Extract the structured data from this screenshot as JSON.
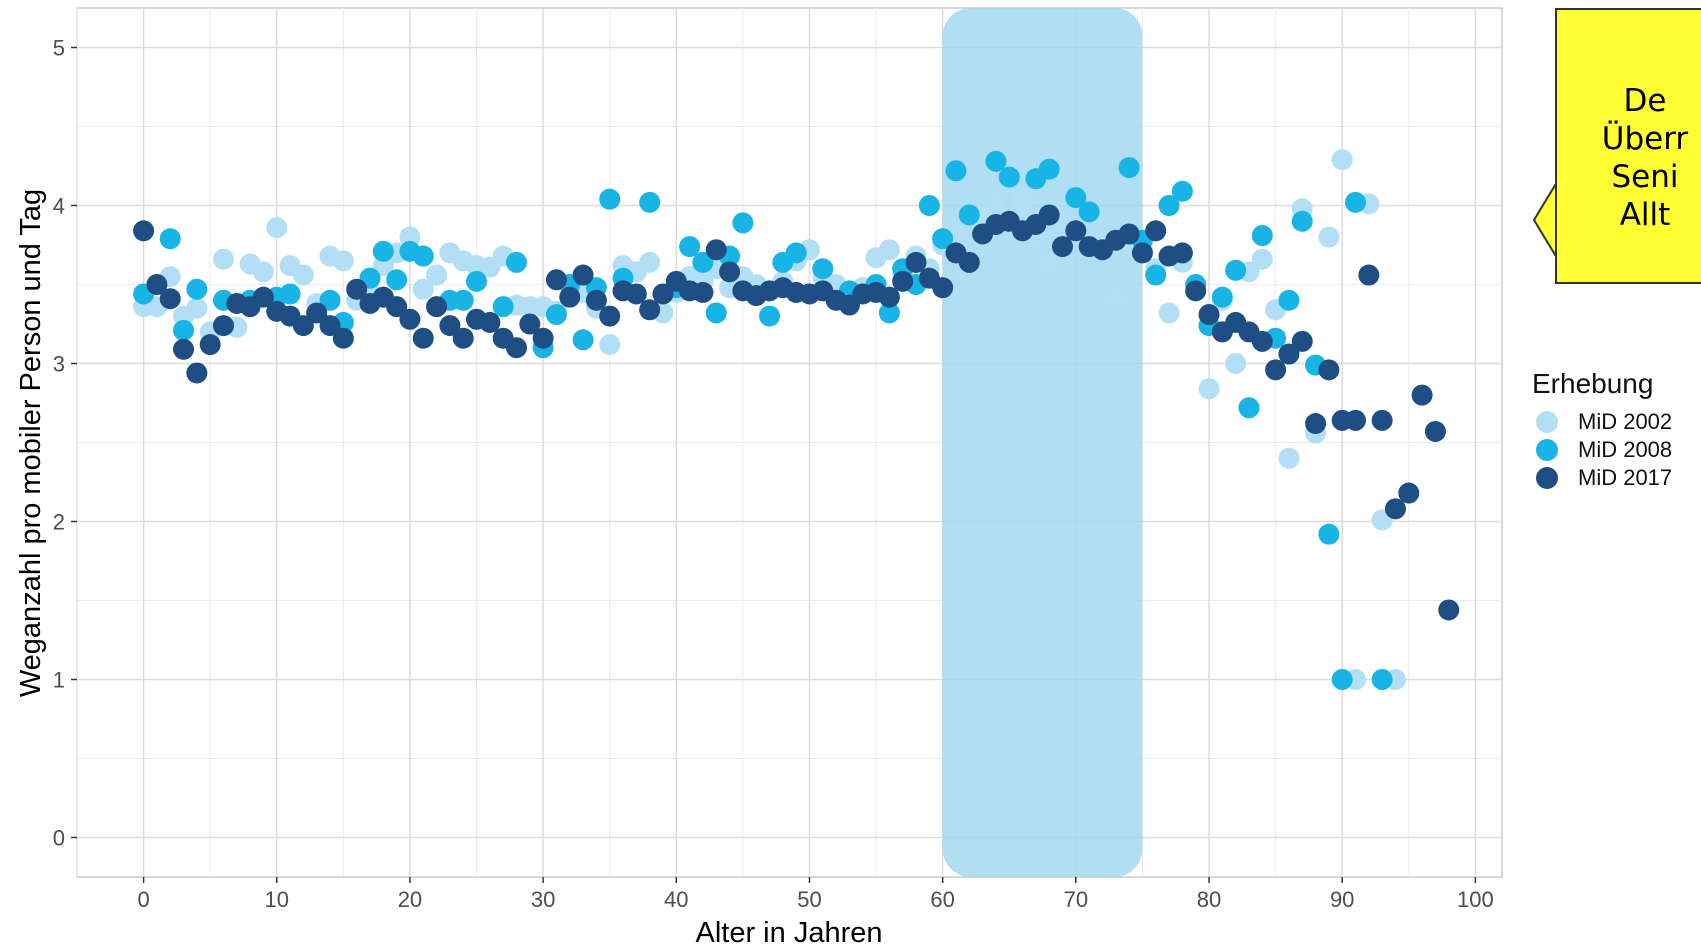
{
  "callout": {
    "lines": [
      "De",
      "Überr",
      "Seni",
      "Allt"
    ]
  },
  "legend": {
    "title": "Erhebung",
    "items": [
      {
        "label": "MiD 2002",
        "color": "#b3dff6"
      },
      {
        "label": "MiD 2008",
        "color": "#19b4e6"
      },
      {
        "label": "MiD 2017",
        "color": "#1f4e84"
      }
    ]
  },
  "highlight": {
    "x_from": 60,
    "x_to": 75,
    "color": "#9fd8f0"
  },
  "chart_data": {
    "type": "scatter",
    "xlabel": "Alter in Jahren",
    "ylabel": "Weganzahl pro mobiler Person und Tag",
    "xlim": [
      -5,
      102
    ],
    "ylim": [
      -0.25,
      5.25
    ],
    "xticks": [
      0,
      10,
      20,
      30,
      40,
      50,
      60,
      70,
      80,
      90,
      100
    ],
    "yticks": [
      0,
      1,
      2,
      3,
      4,
      5
    ],
    "grid": true,
    "legend_position": "right",
    "series": [
      {
        "name": "MiD 2002",
        "color": "#b3dff6",
        "points": [
          [
            0,
            3.36
          ],
          [
            1,
            3.36
          ],
          [
            2,
            3.55
          ],
          [
            3,
            3.3
          ],
          [
            4,
            3.35
          ],
          [
            5,
            3.2
          ],
          [
            6,
            3.66
          ],
          [
            7,
            3.23
          ],
          [
            8,
            3.63
          ],
          [
            9,
            3.58
          ],
          [
            10,
            3.86
          ],
          [
            11,
            3.62
          ],
          [
            12,
            3.56
          ],
          [
            13,
            3.38
          ],
          [
            14,
            3.68
          ],
          [
            15,
            3.65
          ],
          [
            16,
            3.4
          ],
          [
            17,
            3.45
          ],
          [
            18,
            3.62
          ],
          [
            19,
            3.7
          ],
          [
            20,
            3.8
          ],
          [
            21,
            3.47
          ],
          [
            22,
            3.56
          ],
          [
            23,
            3.7
          ],
          [
            24,
            3.65
          ],
          [
            25,
            3.62
          ],
          [
            26,
            3.61
          ],
          [
            27,
            3.68
          ],
          [
            28,
            3.37
          ],
          [
            29,
            3.36
          ],
          [
            30,
            3.36
          ],
          [
            31,
            3.33
          ],
          [
            32,
            3.5
          ],
          [
            33,
            3.45
          ],
          [
            34,
            3.35
          ],
          [
            35,
            3.12
          ],
          [
            36,
            3.62
          ],
          [
            37,
            3.58
          ],
          [
            38,
            3.64
          ],
          [
            39,
            3.32
          ],
          [
            40,
            3.45
          ],
          [
            41,
            3.55
          ],
          [
            42,
            3.52
          ],
          [
            43,
            3.6
          ],
          [
            44,
            3.48
          ],
          [
            45,
            3.55
          ],
          [
            46,
            3.5
          ],
          [
            47,
            3.46
          ],
          [
            48,
            3.52
          ],
          [
            49,
            3.65
          ],
          [
            50,
            3.72
          ],
          [
            51,
            3.55
          ],
          [
            52,
            3.5
          ],
          [
            53,
            3.45
          ],
          [
            54,
            3.48
          ],
          [
            55,
            3.67
          ],
          [
            56,
            3.72
          ],
          [
            57,
            3.55
          ],
          [
            58,
            3.68
          ],
          [
            59,
            3.6
          ],
          [
            60,
            3.75
          ],
          [
            61,
            3.8
          ],
          [
            62,
            3.9
          ],
          [
            63,
            3.92
          ],
          [
            64,
            4.02
          ],
          [
            65,
            4.24
          ],
          [
            66,
            4.02
          ],
          [
            67,
            3.8
          ],
          [
            68,
            3.64
          ],
          [
            69,
            3.9
          ],
          [
            70,
            3.82
          ],
          [
            71,
            3.8
          ],
          [
            72,
            3.76
          ],
          [
            73,
            3.42
          ],
          [
            74,
            3.78
          ],
          [
            75,
            3.72
          ],
          [
            76,
            3.6
          ],
          [
            77,
            3.32
          ],
          [
            78,
            3.64
          ],
          [
            79,
            3.5
          ],
          [
            80,
            2.84
          ],
          [
            81,
            3.4
          ],
          [
            82,
            3.0
          ],
          [
            83,
            3.58
          ],
          [
            84,
            3.66
          ],
          [
            85,
            3.34
          ],
          [
            86,
            2.4
          ],
          [
            87,
            3.98
          ],
          [
            88,
            2.56
          ],
          [
            89,
            3.8
          ],
          [
            90,
            4.29
          ],
          [
            91,
            1.0
          ],
          [
            92,
            4.01
          ],
          [
            93,
            2.01
          ],
          [
            94,
            1.0
          ]
        ]
      },
      {
        "name": "MiD 2008",
        "color": "#19b4e6",
        "points": [
          [
            0,
            3.44
          ],
          [
            2,
            3.79
          ],
          [
            3,
            3.21
          ],
          [
            4,
            3.47
          ],
          [
            6,
            3.4
          ],
          [
            8,
            3.4
          ],
          [
            10,
            3.42
          ],
          [
            11,
            3.44
          ],
          [
            14,
            3.4
          ],
          [
            15,
            3.26
          ],
          [
            17,
            3.54
          ],
          [
            18,
            3.71
          ],
          [
            19,
            3.53
          ],
          [
            20,
            3.71
          ],
          [
            21,
            3.68
          ],
          [
            23,
            3.4
          ],
          [
            24,
            3.4
          ],
          [
            25,
            3.52
          ],
          [
            27,
            3.36
          ],
          [
            28,
            3.64
          ],
          [
            30,
            3.1
          ],
          [
            31,
            3.31
          ],
          [
            32,
            3.5
          ],
          [
            33,
            3.15
          ],
          [
            34,
            3.48
          ],
          [
            35,
            4.04
          ],
          [
            36,
            3.54
          ],
          [
            38,
            4.02
          ],
          [
            40,
            3.48
          ],
          [
            41,
            3.74
          ],
          [
            42,
            3.64
          ],
          [
            43,
            3.32
          ],
          [
            44,
            3.68
          ],
          [
            45,
            3.89
          ],
          [
            47,
            3.3
          ],
          [
            48,
            3.64
          ],
          [
            49,
            3.7
          ],
          [
            51,
            3.6
          ],
          [
            53,
            3.46
          ],
          [
            55,
            3.5
          ],
          [
            56,
            3.32
          ],
          [
            57,
            3.6
          ],
          [
            58,
            3.5
          ],
          [
            59,
            4.0
          ],
          [
            60,
            3.79
          ],
          [
            61,
            4.22
          ],
          [
            62,
            3.94
          ],
          [
            64,
            4.28
          ],
          [
            65,
            4.18
          ],
          [
            67,
            4.17
          ],
          [
            68,
            4.23
          ],
          [
            70,
            4.05
          ],
          [
            71,
            3.96
          ],
          [
            74,
            4.24
          ],
          [
            75,
            3.78
          ],
          [
            76,
            3.56
          ],
          [
            77,
            4.0
          ],
          [
            78,
            4.09
          ],
          [
            79,
            3.5
          ],
          [
            80,
            3.24
          ],
          [
            81,
            3.42
          ],
          [
            82,
            3.59
          ],
          [
            83,
            2.72
          ],
          [
            84,
            3.81
          ],
          [
            85,
            3.16
          ],
          [
            86,
            3.4
          ],
          [
            87,
            3.9
          ],
          [
            88,
            2.99
          ],
          [
            89,
            1.92
          ],
          [
            90,
            1.0
          ],
          [
            91,
            4.02
          ],
          [
            93,
            1.0
          ]
        ]
      },
      {
        "name": "MiD 2017",
        "color": "#1f4e84",
        "points": [
          [
            0,
            3.84
          ],
          [
            1,
            3.5
          ],
          [
            2,
            3.41
          ],
          [
            3,
            3.09
          ],
          [
            4,
            2.94
          ],
          [
            5,
            3.12
          ],
          [
            6,
            3.24
          ],
          [
            7,
            3.38
          ],
          [
            8,
            3.36
          ],
          [
            9,
            3.42
          ],
          [
            10,
            3.33
          ],
          [
            11,
            3.3
          ],
          [
            12,
            3.24
          ],
          [
            13,
            3.32
          ],
          [
            14,
            3.24
          ],
          [
            15,
            3.16
          ],
          [
            16,
            3.47
          ],
          [
            17,
            3.38
          ],
          [
            18,
            3.42
          ],
          [
            19,
            3.36
          ],
          [
            20,
            3.28
          ],
          [
            21,
            3.16
          ],
          [
            22,
            3.36
          ],
          [
            23,
            3.24
          ],
          [
            24,
            3.16
          ],
          [
            25,
            3.28
          ],
          [
            26,
            3.26
          ],
          [
            27,
            3.16
          ],
          [
            28,
            3.1
          ],
          [
            29,
            3.25
          ],
          [
            30,
            3.16
          ],
          [
            31,
            3.53
          ],
          [
            32,
            3.42
          ],
          [
            33,
            3.56
          ],
          [
            34,
            3.4
          ],
          [
            35,
            3.3
          ],
          [
            36,
            3.46
          ],
          [
            37,
            3.44
          ],
          [
            38,
            3.34
          ],
          [
            39,
            3.44
          ],
          [
            40,
            3.52
          ],
          [
            41,
            3.46
          ],
          [
            42,
            3.45
          ],
          [
            43,
            3.72
          ],
          [
            44,
            3.58
          ],
          [
            45,
            3.46
          ],
          [
            46,
            3.43
          ],
          [
            47,
            3.46
          ],
          [
            48,
            3.48
          ],
          [
            49,
            3.45
          ],
          [
            50,
            3.44
          ],
          [
            51,
            3.46
          ],
          [
            52,
            3.4
          ],
          [
            53,
            3.37
          ],
          [
            54,
            3.44
          ],
          [
            55,
            3.45
          ],
          [
            56,
            3.42
          ],
          [
            57,
            3.52
          ],
          [
            58,
            3.64
          ],
          [
            59,
            3.54
          ],
          [
            60,
            3.48
          ],
          [
            61,
            3.7
          ],
          [
            62,
            3.64
          ],
          [
            63,
            3.82
          ],
          [
            64,
            3.88
          ],
          [
            65,
            3.9
          ],
          [
            66,
            3.84
          ],
          [
            67,
            3.88
          ],
          [
            68,
            3.94
          ],
          [
            69,
            3.74
          ],
          [
            70,
            3.84
          ],
          [
            71,
            3.74
          ],
          [
            72,
            3.72
          ],
          [
            73,
            3.78
          ],
          [
            74,
            3.82
          ],
          [
            75,
            3.7
          ],
          [
            76,
            3.84
          ],
          [
            77,
            3.68
          ],
          [
            78,
            3.7
          ],
          [
            79,
            3.46
          ],
          [
            80,
            3.31
          ],
          [
            81,
            3.2
          ],
          [
            82,
            3.26
          ],
          [
            83,
            3.2
          ],
          [
            84,
            3.14
          ],
          [
            85,
            2.96
          ],
          [
            86,
            3.06
          ],
          [
            87,
            3.14
          ],
          [
            88,
            2.62
          ],
          [
            89,
            2.96
          ],
          [
            90,
            2.64
          ],
          [
            91,
            2.64
          ],
          [
            92,
            3.56
          ],
          [
            93,
            2.64
          ],
          [
            94,
            2.08
          ],
          [
            95,
            2.18
          ],
          [
            96,
            2.8
          ],
          [
            97,
            2.57
          ],
          [
            98,
            1.44
          ]
        ]
      }
    ]
  }
}
